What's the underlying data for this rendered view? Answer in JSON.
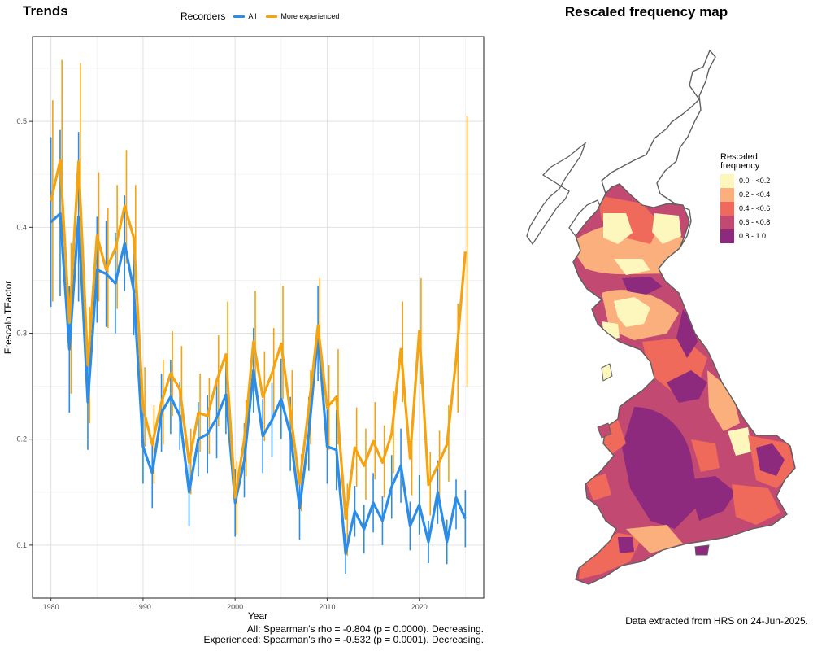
{
  "chart_title": "Trends",
  "map_title": "Rescaled frequency map",
  "legend": {
    "title": "Recorders",
    "items": [
      {
        "name": "All",
        "color": "#2b8de8"
      },
      {
        "name": "More experienced",
        "color": "#f5a30f"
      }
    ]
  },
  "chart_data": {
    "type": "line",
    "title": "Trends",
    "xlabel": "Year",
    "ylabel": "Frescalo TFactor",
    "xlim": [
      1978,
      2027
    ],
    "ylim": [
      0.05,
      0.58
    ],
    "xticks": [
      1980,
      1990,
      2000,
      2010,
      2020
    ],
    "yticks": [
      0.1,
      0.2,
      0.3,
      0.4,
      0.5
    ],
    "grid": true,
    "legend_position": "top",
    "error_bars": true,
    "series": [
      {
        "name": "All",
        "color": "#2b8de8",
        "x": [
          1980,
          1981,
          1982,
          1983,
          1984,
          1985,
          1986,
          1987,
          1988,
          1989,
          1990,
          1991,
          1992,
          1993,
          1994,
          1995,
          1996,
          1997,
          1998,
          1999,
          2000,
          2001,
          2002,
          2003,
          2004,
          2005,
          2006,
          2007,
          2008,
          2009,
          2010,
          2011,
          2012,
          2013,
          2014,
          2015,
          2016,
          2017,
          2018,
          2019,
          2020,
          2021,
          2022,
          2023,
          2024,
          2025
        ],
        "y": [
          0.405,
          0.413,
          0.285,
          0.41,
          0.235,
          0.36,
          0.356,
          0.347,
          0.385,
          0.34,
          0.193,
          0.168,
          0.225,
          0.24,
          0.222,
          0.15,
          0.2,
          0.205,
          0.22,
          0.242,
          0.14,
          0.18,
          0.265,
          0.203,
          0.218,
          0.238,
          0.205,
          0.135,
          0.205,
          0.3,
          0.193,
          0.19,
          0.092,
          0.132,
          0.115,
          0.14,
          0.123,
          0.155,
          0.175,
          0.118,
          0.138,
          0.103,
          0.15,
          0.103,
          0.145,
          0.125
        ],
        "lower": [
          0.325,
          0.335,
          0.225,
          0.33,
          0.19,
          0.31,
          0.306,
          0.3,
          0.34,
          0.298,
          0.158,
          0.135,
          0.188,
          0.205,
          0.19,
          0.118,
          0.165,
          0.168,
          0.182,
          0.205,
          0.108,
          0.145,
          0.225,
          0.168,
          0.183,
          0.2,
          0.17,
          0.105,
          0.17,
          0.255,
          0.158,
          0.152,
          0.073,
          0.108,
          0.092,
          0.112,
          0.1,
          0.125,
          0.14,
          0.095,
          0.11,
          0.083,
          0.12,
          0.082,
          0.115,
          0.098
        ],
        "upper": [
          0.485,
          0.492,
          0.345,
          0.49,
          0.28,
          0.41,
          0.406,
          0.395,
          0.43,
          0.382,
          0.228,
          0.201,
          0.262,
          0.275,
          0.254,
          0.182,
          0.235,
          0.242,
          0.258,
          0.279,
          0.172,
          0.215,
          0.305,
          0.238,
          0.253,
          0.276,
          0.24,
          0.165,
          0.24,
          0.345,
          0.228,
          0.228,
          0.111,
          0.156,
          0.138,
          0.168,
          0.146,
          0.185,
          0.21,
          0.141,
          0.166,
          0.123,
          0.18,
          0.124,
          0.162,
          0.152
        ]
      },
      {
        "name": "More experienced",
        "color": "#f5a30f",
        "x": [
          1980,
          1981,
          1982,
          1983,
          1984,
          1985,
          1986,
          1987,
          1988,
          1989,
          1990,
          1991,
          1992,
          1993,
          1994,
          1995,
          1996,
          1997,
          1998,
          1999,
          2000,
          2001,
          2002,
          2003,
          2004,
          2005,
          2006,
          2007,
          2008,
          2009,
          2010,
          2011,
          2012,
          2013,
          2014,
          2015,
          2016,
          2017,
          2018,
          2019,
          2020,
          2021,
          2022,
          2023,
          2024,
          2025
        ],
        "y": [
          0.425,
          0.463,
          0.31,
          0.462,
          0.27,
          0.392,
          0.36,
          0.38,
          0.42,
          0.39,
          0.23,
          0.195,
          0.235,
          0.262,
          0.247,
          0.178,
          0.225,
          0.222,
          0.255,
          0.28,
          0.145,
          0.2,
          0.292,
          0.24,
          0.262,
          0.29,
          0.225,
          0.158,
          0.23,
          0.307,
          0.23,
          0.24,
          0.125,
          0.192,
          0.175,
          0.198,
          0.178,
          0.205,
          0.285,
          0.182,
          0.302,
          0.157,
          0.175,
          0.195,
          0.275,
          0.377
        ],
        "lower": [
          0.33,
          0.375,
          0.243,
          0.37,
          0.215,
          0.33,
          0.305,
          0.323,
          0.366,
          0.338,
          0.193,
          0.158,
          0.195,
          0.222,
          0.208,
          0.148,
          0.188,
          0.186,
          0.212,
          0.232,
          0.11,
          0.165,
          0.245,
          0.198,
          0.22,
          0.238,
          0.187,
          0.132,
          0.195,
          0.262,
          0.19,
          0.195,
          0.09,
          0.155,
          0.143,
          0.162,
          0.145,
          0.168,
          0.235,
          0.147,
          0.252,
          0.128,
          0.144,
          0.16,
          0.225,
          0.25
        ],
        "upper": [
          0.52,
          0.558,
          0.385,
          0.555,
          0.325,
          0.452,
          0.418,
          0.44,
          0.473,
          0.44,
          0.268,
          0.232,
          0.275,
          0.302,
          0.288,
          0.21,
          0.262,
          0.258,
          0.298,
          0.33,
          0.18,
          0.237,
          0.34,
          0.283,
          0.305,
          0.345,
          0.265,
          0.186,
          0.265,
          0.352,
          0.27,
          0.285,
          0.158,
          0.23,
          0.21,
          0.235,
          0.213,
          0.245,
          0.33,
          0.218,
          0.352,
          0.188,
          0.208,
          0.232,
          0.328,
          0.505
        ]
      }
    ]
  },
  "stats": {
    "line1": "All: Spearman's rho = -0.804 (p = 0.0000). Decreasing.",
    "line2": "Experienced: Spearman's rho = -0.532 (p = 0.0001). Decreasing."
  },
  "map": {
    "fill_default": "#c24a72",
    "outline_color": "#5f5f5f",
    "legend": {
      "title_line1": "Rescaled",
      "title_line2": "frequency",
      "classes": [
        {
          "label": "0.0 - <0.2",
          "color": "#fdf7bd"
        },
        {
          "label": "0.2 - <0.4",
          "color": "#fbaf7c"
        },
        {
          "label": "0.4 - <0.6",
          "color": "#ef6a5a"
        },
        {
          "label": "0.6 - <0.8",
          "color": "#c24a72"
        },
        {
          "label": "0.8 - 1.0",
          "color": "#8e2a7e"
        }
      ]
    }
  },
  "source_note": "Data extracted from HRS on 24-Jun-2025."
}
